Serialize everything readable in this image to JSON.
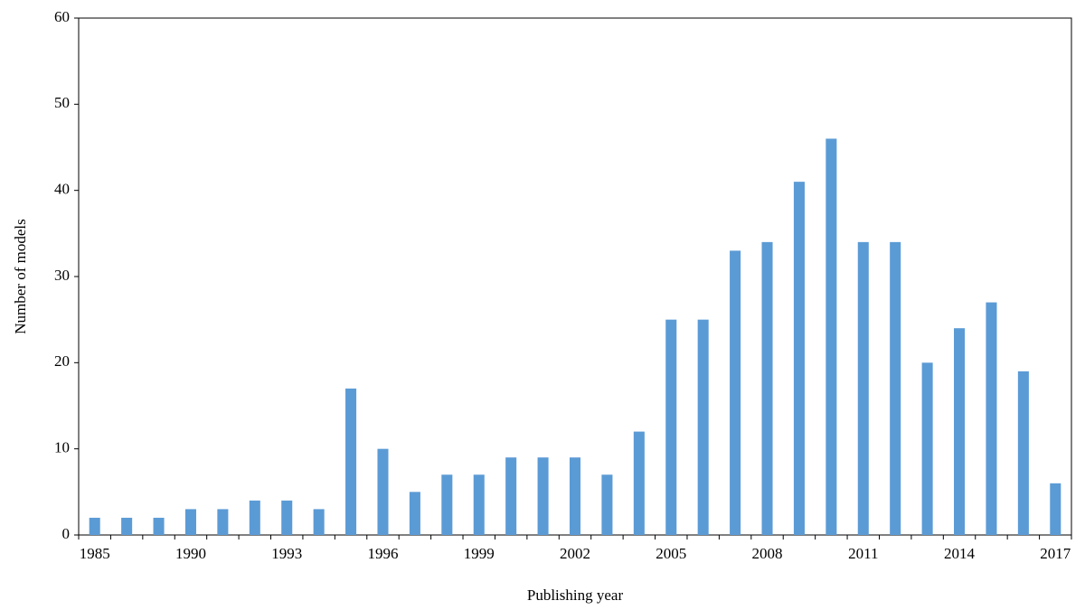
{
  "chart_data": {
    "type": "bar",
    "x_label": "Publishing year",
    "y_label": "Number of models",
    "categories": [
      "1985",
      null,
      null,
      "1990",
      null,
      null,
      "1993",
      null,
      null,
      "1996",
      null,
      null,
      "1999",
      null,
      null,
      "2002",
      null,
      null,
      "2005",
      null,
      null,
      "2008",
      null,
      null,
      "2011",
      null,
      null,
      "2014",
      null,
      null,
      "2017"
    ],
    "values": [
      2,
      2,
      2,
      3,
      3,
      4,
      4,
      3,
      17,
      10,
      5,
      7,
      7,
      9,
      9,
      9,
      7,
      12,
      25,
      25,
      33,
      34,
      41,
      46,
      34,
      34,
      20,
      24,
      27,
      19,
      6
    ],
    "color": "#5b9bd5",
    "ylim": [
      0,
      60
    ],
    "yticks": [
      0,
      10,
      20,
      30,
      40,
      50,
      60
    ],
    "grid": false
  }
}
